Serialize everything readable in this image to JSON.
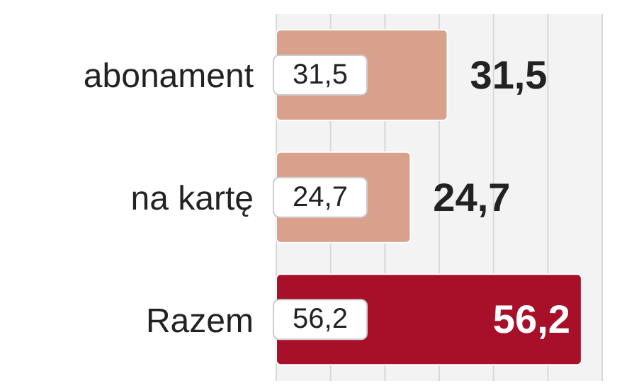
{
  "chart_data": {
    "type": "bar",
    "orientation": "horizontal",
    "categories": [
      "abonament",
      "na kartę",
      "Razem"
    ],
    "values": [
      31.5,
      24.7,
      56.2
    ],
    "colors": [
      "#d9a08b",
      "#d9a08b",
      "#a8102a"
    ],
    "value_labels": [
      "31,5",
      "24,7",
      "56,2"
    ],
    "xlim": [
      0,
      60
    ],
    "xticks": [
      {
        "value": 10,
        "label": null
      },
      {
        "value": 20,
        "label": null
      },
      {
        "value": 30,
        "label": null
      },
      {
        "value": 40,
        "label": null
      },
      {
        "value": 50,
        "label": null
      }
    ],
    "grid": "x",
    "tick_labels": "y"
  }
}
